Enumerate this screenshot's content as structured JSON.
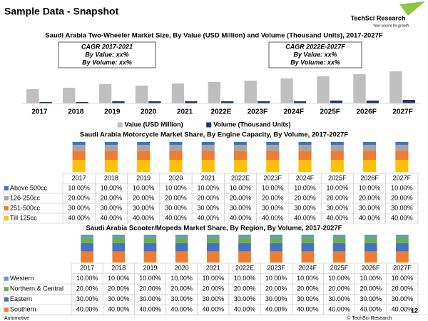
{
  "slide": {
    "title": "Sample Data - Snapshot",
    "logo": "TechSci Research",
    "logo_tagline": "Your source for growth",
    "footer_left": "Automotive",
    "footer_right": "© TechSci Research",
    "page_number": "12"
  },
  "chart_data": [
    {
      "type": "bar",
      "title": "Saudi Arabia Two-Wheeler Market Size, By Value (USD Million) and Volume (Thousand Units), 2017-2027F",
      "categories": [
        "2017",
        "2018",
        "2019",
        "2020",
        "2021",
        "2022E",
        "2023F",
        "2024F",
        "2025F",
        "2026F",
        "2027F"
      ],
      "series": [
        {
          "name": "Value (USD Million)",
          "color": "#bfbfbf",
          "values": [
            20,
            22,
            27,
            25,
            28,
            30,
            32,
            35,
            38,
            41,
            45
          ]
        },
        {
          "name": "Volume (Thousand Units)",
          "color": "#1f3864",
          "values": [
            2,
            2,
            3,
            3,
            3,
            3,
            3,
            3,
            4,
            4,
            5
          ]
        }
      ],
      "ylim": [
        0,
        50
      ],
      "annotations": [
        {
          "lines": [
            "CAGR 2017-2021",
            "By Value: xx%",
            "By Volume: xx%"
          ]
        },
        {
          "lines": [
            "CAGR 2022E-2027F",
            "By Value: xx%",
            "By Volume: xx%"
          ]
        }
      ],
      "legend": "bottom"
    },
    {
      "type": "stacked_bar",
      "title": "Saudi Arabia Motorcycle Market Share, By Engine Capacity, By Volume, 2017-2027F",
      "categories": [
        "2017",
        "2018",
        "2019",
        "2020",
        "2021",
        "2022E",
        "2023F",
        "2024F",
        "2025F",
        "2026F",
        "2027F"
      ],
      "series": [
        {
          "name": "Above 500cc",
          "color": "#4472c4",
          "values": [
            10,
            10,
            10,
            10,
            10,
            10,
            10,
            10,
            10,
            10,
            10
          ],
          "value_labels": [
            "10.00%",
            "10.00%",
            "10.00%",
            "10.00%",
            "10.00%",
            "10.00%",
            "10.00%",
            "10.00%",
            "10.00%",
            "10.00%",
            "10.00%"
          ]
        },
        {
          "name": "126-250cc",
          "color": "#a5a5a5",
          "values": [
            20,
            20,
            20,
            20,
            20,
            20,
            20,
            20,
            20,
            20,
            20
          ],
          "value_labels": [
            "20.00%",
            "20.00%",
            "20.00%",
            "20.00%",
            "20.00%",
            "20.00%",
            "20.00%",
            "20.00%",
            "20.00%",
            "20.00%",
            "20.00%"
          ]
        },
        {
          "name": "251-500cc",
          "color": "#ed7d31",
          "values": [
            30,
            30,
            30,
            30,
            30,
            30,
            30,
            30,
            30,
            30,
            30
          ],
          "value_labels": [
            "30.00%",
            "30.00%",
            "30.00%",
            "30.00%",
            "30.00%",
            "30.00%",
            "30.00%",
            "30.00%",
            "30.00%",
            "30.00%",
            "30.00%"
          ]
        },
        {
          "name": "Till 125cc",
          "color": "#ffc000",
          "values": [
            40,
            40,
            40,
            40,
            40,
            40,
            40,
            40,
            40,
            40,
            40
          ],
          "value_labels": [
            "40.00%",
            "40.00%",
            "40.00%",
            "40.00%",
            "40.00%",
            "40.00%",
            "40.00%",
            "40.00%",
            "40.00%",
            "40.00%",
            "40.00%"
          ]
        }
      ],
      "ylim": [
        0,
        100
      ],
      "data_table": true
    },
    {
      "type": "stacked_bar",
      "title": "Saudi Arabia Scooter/Mopeds Market Share, By Region, By Volume, 2017-2027F",
      "categories": [
        "2017",
        "2018",
        "2019",
        "2020",
        "2021",
        "2022E",
        "2023F",
        "2024F",
        "2025F",
        "2026F",
        "2027F"
      ],
      "series": [
        {
          "name": "Western",
          "color": "#5b9bd5",
          "values": [
            10,
            10,
            10,
            10,
            10,
            10,
            10,
            10,
            10,
            10,
            10
          ],
          "value_labels": [
            "10.00%",
            "10.00%",
            "10.00%",
            "10.00%",
            "10.00%",
            "10.00%",
            "10.00%",
            "10.00%",
            "10.00%",
            "10.00%",
            "10.00%"
          ]
        },
        {
          "name": "Northern & Central",
          "color": "#70ad47",
          "values": [
            20,
            20,
            20,
            20,
            20,
            20,
            20,
            20,
            20,
            20,
            20
          ],
          "value_labels": [
            "20.00%",
            "20.00%",
            "20.00%",
            "20.00%",
            "20.00%",
            "20.00%",
            "20.00%",
            "20.00%",
            "20.00%",
            "20.00%",
            "20.00%"
          ]
        },
        {
          "name": "Eastern",
          "color": "#4472c4",
          "values": [
            30,
            30,
            30,
            30,
            30,
            30,
            30,
            30,
            30,
            30,
            30
          ],
          "value_labels": [
            "30.00%",
            "30.00%",
            "30.00%",
            "30.00%",
            "30.00%",
            "30.00%",
            "30.00%",
            "30.00%",
            "30.00%",
            "30.00%",
            "30.00%"
          ]
        },
        {
          "name": "Southern",
          "color": "#ed7d31",
          "values": [
            40,
            40,
            40,
            40,
            40,
            40,
            40,
            40,
            40,
            40,
            40
          ],
          "value_labels": [
            "40.00%",
            "40.00%",
            "40.00%",
            "40.00%",
            "40.00%",
            "40.00%",
            "40.00%",
            "40.00%",
            "40.00%",
            "40.00%",
            "40.00%"
          ]
        }
      ],
      "ylim": [
        0,
        100
      ],
      "data_table": true
    }
  ]
}
